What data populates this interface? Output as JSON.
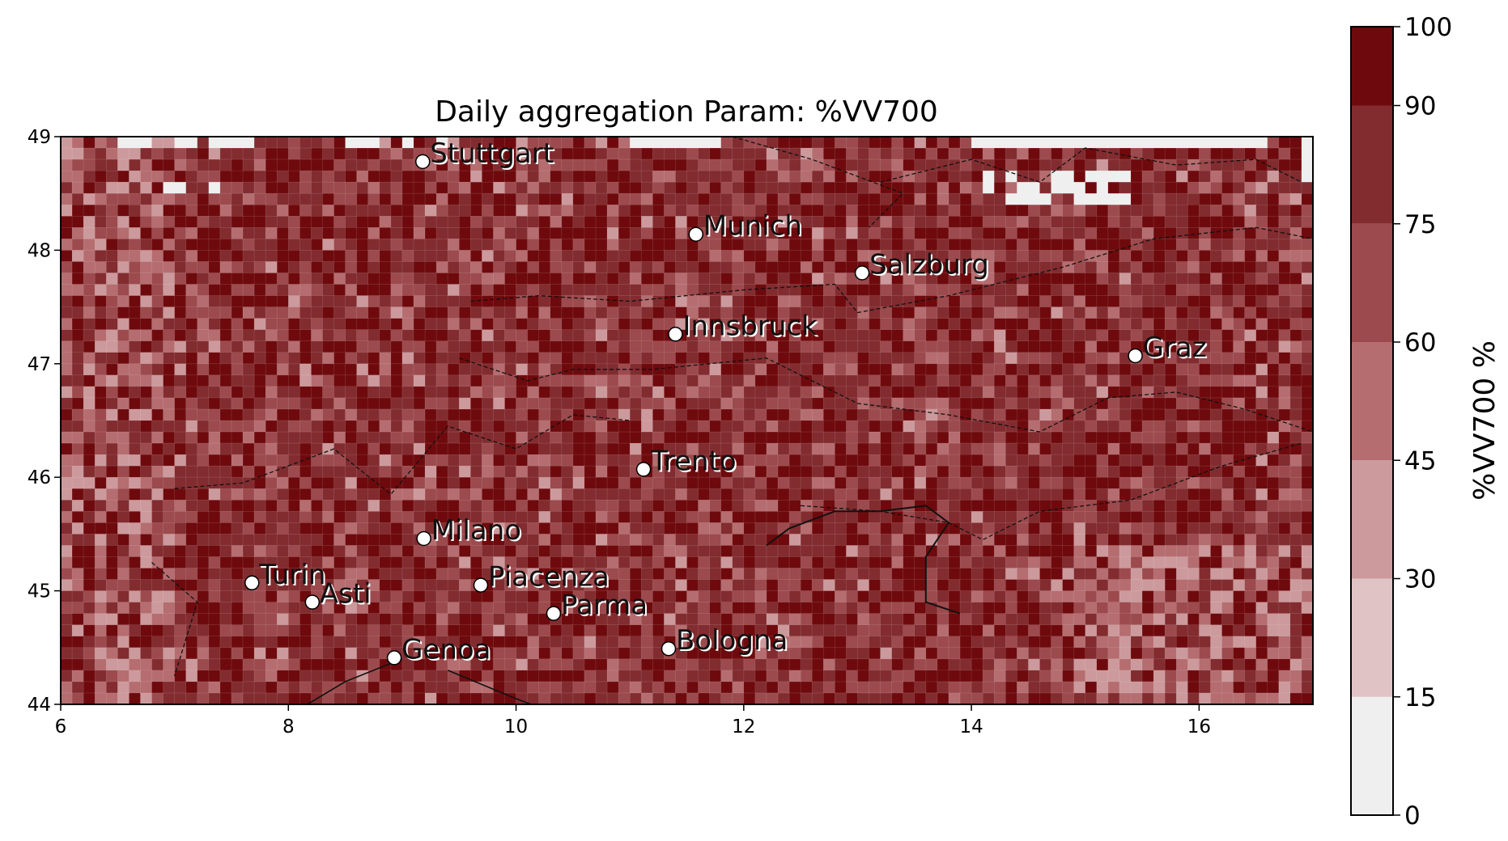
{
  "map": {
    "title": "Daily aggregation Param: %VV700",
    "extent": {
      "lon": [
        6,
        17
      ],
      "lat": [
        44,
        49
      ]
    },
    "x_ticks": [
      "6",
      "8",
      "10",
      "12",
      "14",
      "16"
    ],
    "y_ticks": [
      "44",
      "45",
      "46",
      "47",
      "48",
      "49"
    ],
    "cities": [
      {
        "name": "Stuttgart",
        "lon": 9.18,
        "lat": 48.78
      },
      {
        "name": "Munich",
        "lon": 11.58,
        "lat": 48.14
      },
      {
        "name": "Salzburg",
        "lon": 13.04,
        "lat": 47.8
      },
      {
        "name": "Innsbruck",
        "lon": 11.4,
        "lat": 47.26
      },
      {
        "name": "Graz",
        "lon": 15.44,
        "lat": 47.07
      },
      {
        "name": "Trento",
        "lon": 11.12,
        "lat": 46.07
      },
      {
        "name": "Milano",
        "lon": 9.19,
        "lat": 45.46
      },
      {
        "name": "Turin",
        "lon": 7.68,
        "lat": 45.07
      },
      {
        "name": "Asti",
        "lon": 8.21,
        "lat": 44.9
      },
      {
        "name": "Piacenza",
        "lon": 9.69,
        "lat": 45.05
      },
      {
        "name": "Parma",
        "lon": 10.33,
        "lat": 44.8
      },
      {
        "name": "Genoa",
        "lon": 8.93,
        "lat": 44.41
      },
      {
        "name": "Bologna",
        "lon": 11.34,
        "lat": 44.49
      }
    ]
  },
  "colorbar": {
    "label": "%VV700  %",
    "ticks": [
      "0",
      "15",
      "30",
      "45",
      "60",
      "75",
      "90",
      "100"
    ],
    "levels": [
      0,
      15,
      30,
      45,
      60,
      75,
      90,
      100
    ],
    "colors": [
      "#efefef",
      "#e0c3c5",
      "#cc9a9c",
      "#b56d70",
      "#9c4a4d",
      "#822c30",
      "#6e0a0d"
    ]
  }
}
